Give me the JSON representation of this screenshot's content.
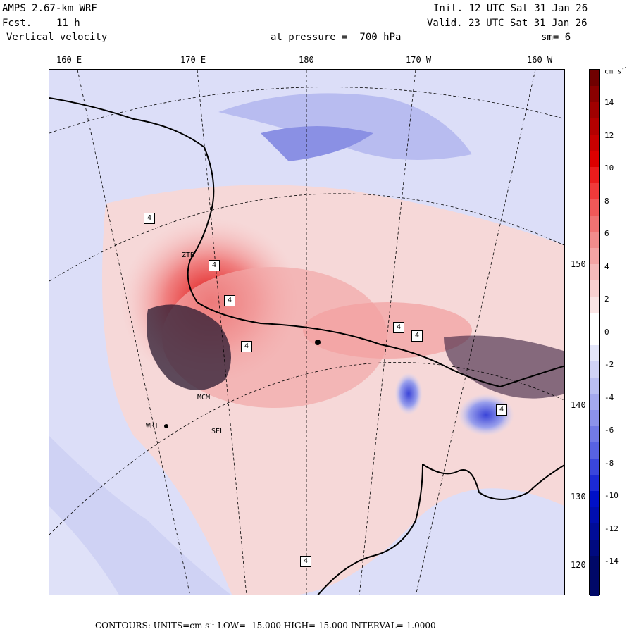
{
  "header": {
    "model": "AMPS 2.67-km WRF",
    "fcst_label": "Fcst.",
    "fcst_value": "11 h",
    "field": "Vertical velocity",
    "init": "Init. 12 UTC Sat 31 Jan 26",
    "valid": "Valid. 23 UTC Sat 31 Jan 26",
    "level": "at pressure =  700 hPa",
    "smooth": "sm= 6"
  },
  "axes": {
    "lon_labels": [
      "160 E",
      "170 E",
      "180",
      "170 W",
      "160 W"
    ],
    "lat_labels": [
      "150 W",
      "140 W",
      "130 W",
      "120 W"
    ]
  },
  "colorbar": {
    "units": "cm s",
    "units_exp": "-1",
    "labels": [
      "14",
      "12",
      "10",
      "8",
      "6",
      "4",
      "2",
      "0",
      "-2",
      "-4",
      "-6",
      "-8",
      "-10",
      "-12",
      "-14"
    ]
  },
  "stations": {
    "ztb": "ZTB",
    "wrt": "WRT",
    "mcm": "MCM",
    "sel": "SEL",
    "box_label": "4"
  },
  "footer": {
    "text1": "CONTOURS:  UNITS=cm s",
    "exp": "-1",
    "text2": "  LOW= -15.000      HIGH=  15.000      INTERVAL=   1.0000"
  }
}
